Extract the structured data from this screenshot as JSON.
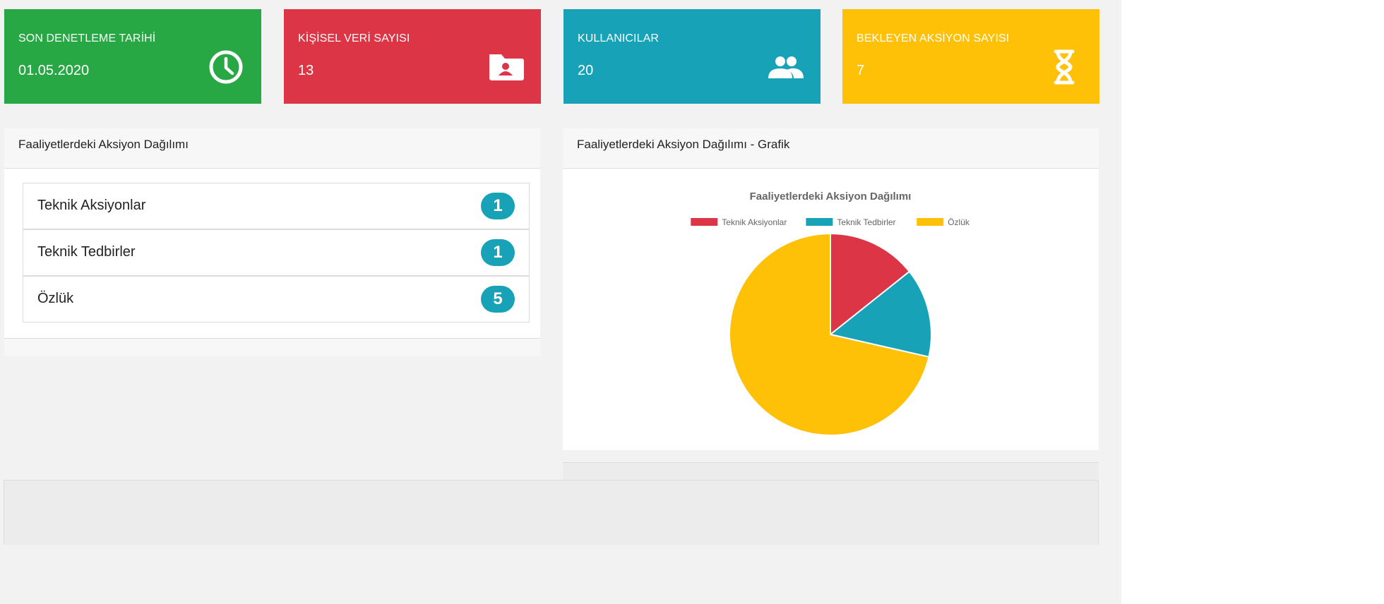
{
  "colors": {
    "green": "#28a745",
    "red": "#dc3545",
    "teal": "#17a2b8",
    "yellow": "#ffc107"
  },
  "stats": [
    {
      "title": "SON DENETLEME TARİHİ",
      "value": "01.05.2020",
      "icon": "clock-icon",
      "color": "#28a745"
    },
    {
      "title": "KİŞİSEL VERİ SAYISI",
      "value": "13",
      "icon": "folder-user-icon",
      "color": "#dc3545"
    },
    {
      "title": "KULLANICILAR",
      "value": "20",
      "icon": "users-icon",
      "color": "#17a2b8"
    },
    {
      "title": "BEKLEYEN AKSİYON SAYISI",
      "value": "7",
      "icon": "hourglass-icon",
      "color": "#ffc107"
    }
  ],
  "list_panel": {
    "title": "Faaliyetlerdeki Aksiyon Dağılımı",
    "items": [
      {
        "label": "Teknik Aksiyonlar",
        "count": "1"
      },
      {
        "label": "Teknik Tedbirler",
        "count": "1"
      },
      {
        "label": "Özlük",
        "count": "5"
      }
    ]
  },
  "chart_panel": {
    "title": "Faaliyetlerdeki Aksiyon Dağılımı - Grafik"
  },
  "chart_data": {
    "type": "pie",
    "title": "Faaliyetlerdeki Aksiyon Dağılımı",
    "categories": [
      "Teknik Aksiyonlar",
      "Teknik Tedbirler",
      "Özlük"
    ],
    "values": [
      1,
      1,
      5
    ],
    "colors": [
      "#dc3545",
      "#17a2b8",
      "#ffc107"
    ],
    "legend": "top"
  }
}
